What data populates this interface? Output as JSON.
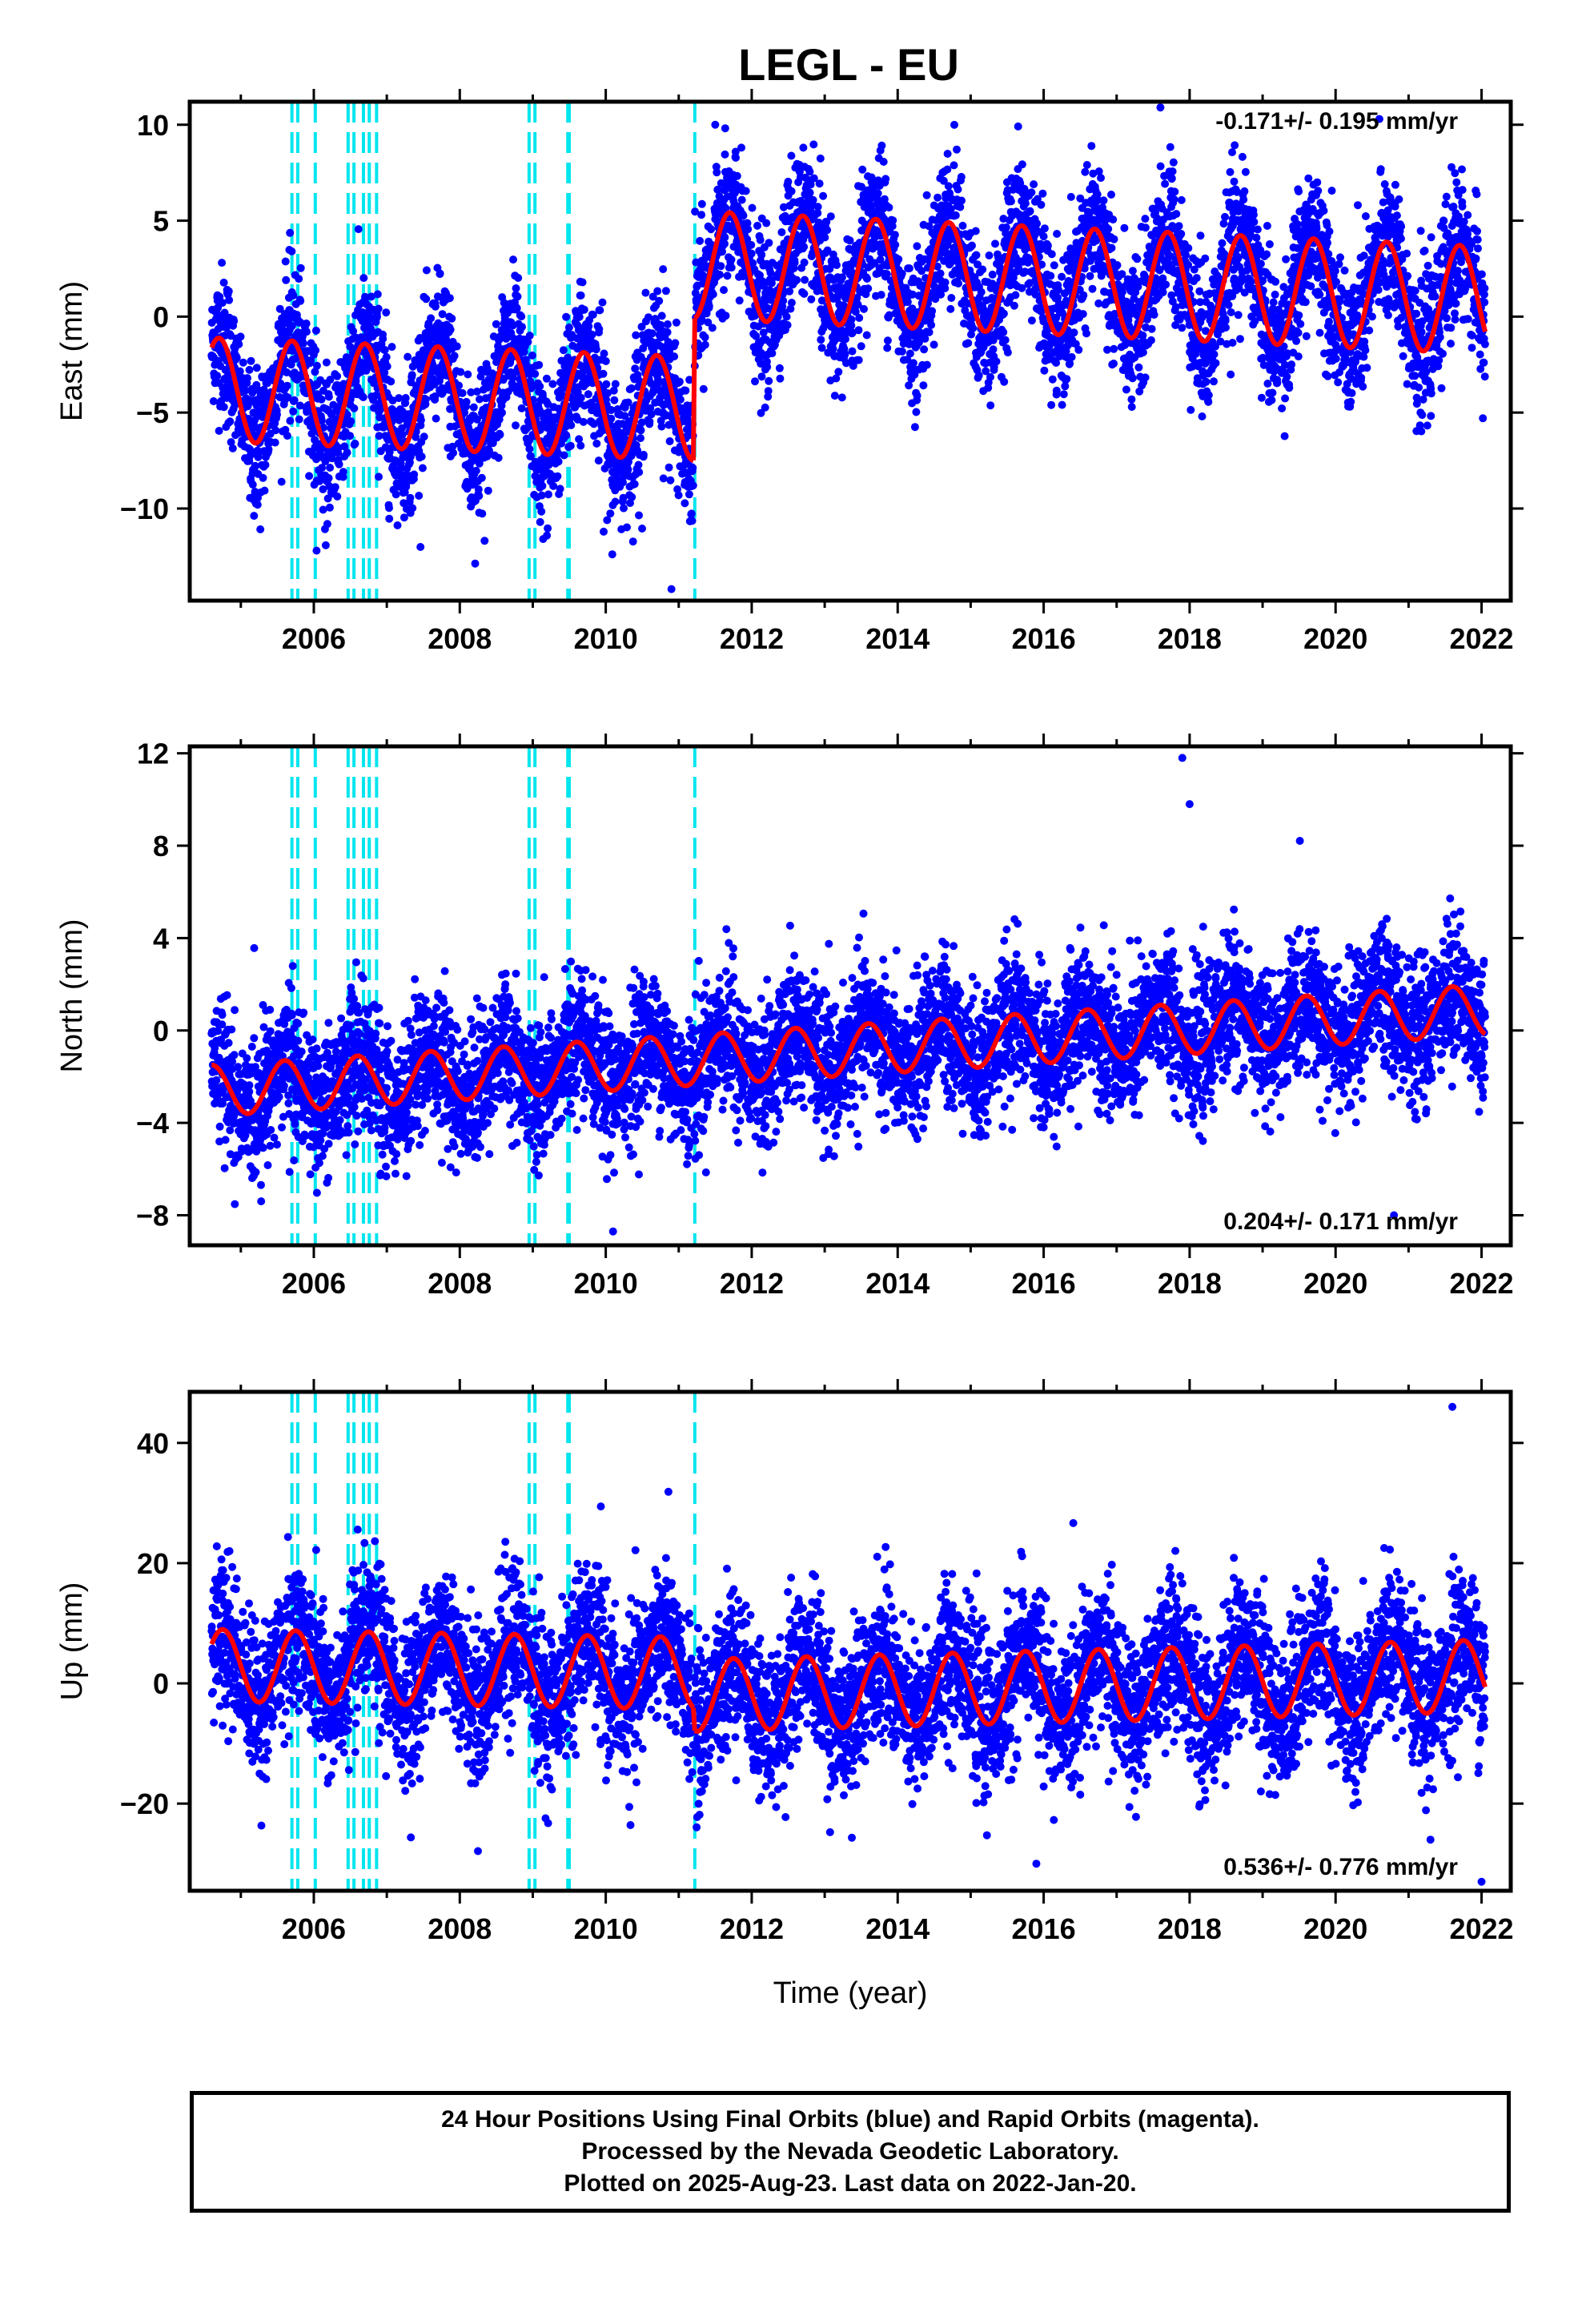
{
  "title": "LEGL - EU",
  "colors": {
    "data": "#0000ff",
    "model": "#ff0000",
    "steps": "#00e5ee",
    "frame": "#000000"
  },
  "footer": {
    "line1": "24 Hour Positions Using Final Orbits (blue) and Rapid Orbits (magenta).",
    "line2": "Processed by the Nevada Geodetic Laboratory.",
    "line3": "Plotted on 2025-Aug-23. Last data on 2022-Jan-20."
  },
  "chart_data": [
    {
      "type": "scatter",
      "id": "east",
      "ylabel": "East (mm)",
      "xlabel": "",
      "xlim": [
        2004.3,
        2022.4
      ],
      "ylim": [
        -14.8,
        11.2
      ],
      "yticks": [
        10,
        5,
        0,
        -5,
        -10
      ],
      "xticks": [
        2006,
        2008,
        2010,
        2012,
        2014,
        2016,
        2018,
        2020,
        2022
      ],
      "rate_label": "-0.171+/- 0.195 mm/yr",
      "rate_position": "top-right",
      "step_epochs": [
        2005.7,
        2005.78,
        2006.02,
        2006.47,
        2006.55,
        2006.68,
        2006.76,
        2006.86,
        2008.95,
        2009.03,
        2009.48,
        2009.5,
        2011.22
      ],
      "model": {
        "segments": [
          {
            "t0": 2004.6,
            "t1": 2011.2,
            "a": -3.8,
            "b": -0.15,
            "tref": 2004.6,
            "amp": 2.7,
            "phase": 0.45
          },
          {
            "t0": 2011.22,
            "t1": 2022.05,
            "a": 2.7,
            "b": -0.17,
            "tref": 2011.22,
            "amp": 2.8,
            "phase": 0.45
          }
        ]
      },
      "data_extremes": [
        {
          "x": 2010.9,
          "y": -14.2
        },
        {
          "x": 2011.5,
          "y": 10.0
        },
        {
          "x": 2017.6,
          "y": 10.9
        },
        {
          "x": 2020.6,
          "y": 10.3
        }
      ],
      "scatter_noise": 1.6
    },
    {
      "type": "scatter",
      "id": "north",
      "ylabel": "North (mm)",
      "xlabel": "",
      "xlim": [
        2004.3,
        2022.4
      ],
      "ylim": [
        -9.3,
        12.3
      ],
      "yticks": [
        12,
        8,
        4,
        0,
        -4,
        -8
      ],
      "xticks": [
        2006,
        2008,
        2010,
        2012,
        2014,
        2016,
        2018,
        2020,
        2022
      ],
      "rate_label": "0.204+/- 0.171 mm/yr",
      "rate_position": "bottom-right",
      "step_epochs": [
        2005.7,
        2005.78,
        2006.02,
        2006.47,
        2006.55,
        2006.68,
        2006.76,
        2006.86,
        2008.95,
        2009.03,
        2009.48,
        2009.5,
        2011.22
      ],
      "model": {
        "segments": [
          {
            "t0": 2004.6,
            "t1": 2022.05,
            "a": -2.6,
            "b": 0.2,
            "tref": 2004.6,
            "amp": 1.1,
            "phase": 0.35
          }
        ]
      },
      "data_extremes": [
        {
          "x": 2017.9,
          "y": 11.8
        },
        {
          "x": 2018.0,
          "y": 9.8
        },
        {
          "x": 2010.1,
          "y": -8.7
        },
        {
          "x": 2020.8,
          "y": -8.0
        }
      ],
      "scatter_noise": 1.3
    },
    {
      "type": "scatter",
      "id": "up",
      "ylabel": "Up (mm)",
      "xlabel": "Time (year)",
      "xlim": [
        2004.3,
        2022.4
      ],
      "ylim": [
        -34.5,
        48.5
      ],
      "yticks": [
        40,
        20,
        0,
        -20
      ],
      "xticks": [
        2006,
        2008,
        2010,
        2012,
        2014,
        2016,
        2018,
        2020,
        2022
      ],
      "rate_label": "0.536+/- 0.776 mm/yr",
      "rate_position": "bottom-right",
      "step_epochs": [
        2005.7,
        2005.78,
        2006.02,
        2006.47,
        2006.55,
        2006.68,
        2006.76,
        2006.86,
        2008.95,
        2009.03,
        2009.48,
        2009.5,
        2011.22
      ],
      "model": {
        "segments": [
          {
            "t0": 2004.6,
            "t1": 2011.2,
            "a": 3.0,
            "b": -0.2,
            "tref": 2004.6,
            "amp": 6.0,
            "phase": 0.5
          },
          {
            "t0": 2011.22,
            "t1": 2022.05,
            "a": -2.0,
            "b": 0.3,
            "tref": 2011.22,
            "amp": 6.0,
            "phase": 0.5
          }
        ]
      },
      "data_extremes": [
        {
          "x": 2021.6,
          "y": 46.0
        },
        {
          "x": 2021.3,
          "y": -26.0
        },
        {
          "x": 2015.9,
          "y": -30.0
        },
        {
          "x": 2022.0,
          "y": -33.0
        }
      ],
      "scatter_noise": 5.5
    }
  ]
}
